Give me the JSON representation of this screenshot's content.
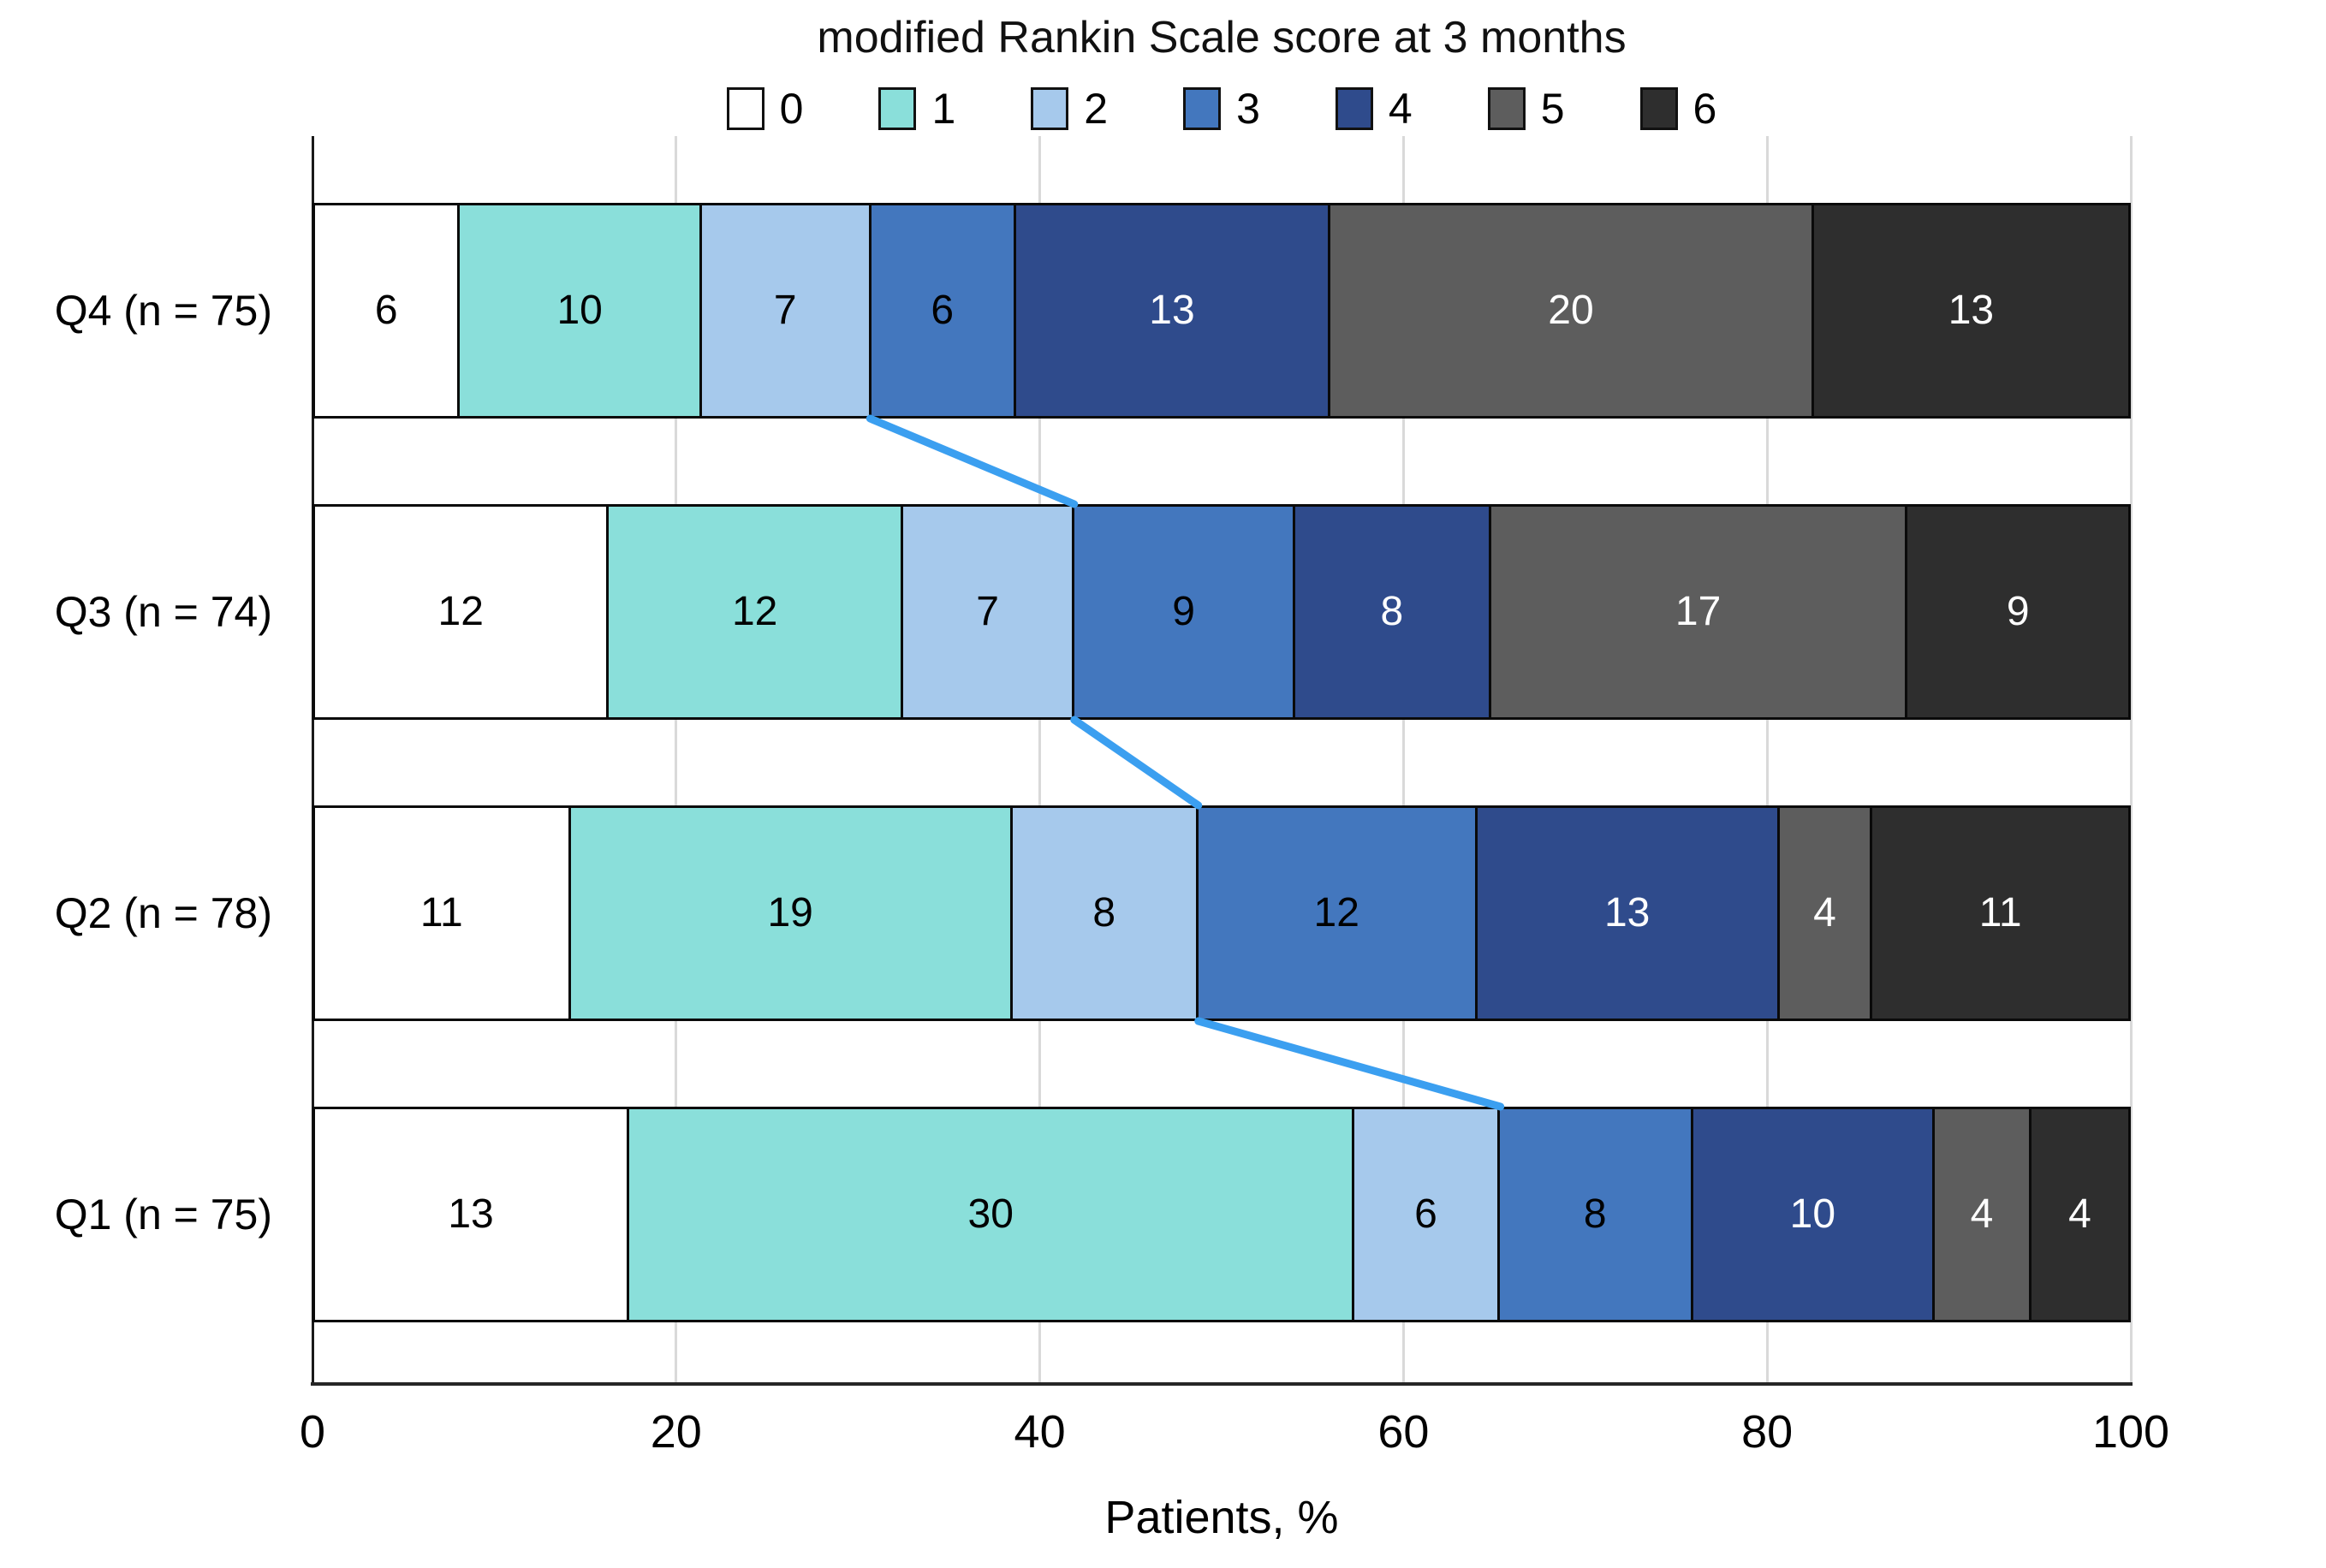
{
  "title": "modified Rankin Scale score at 3 months",
  "x_axis_title": "Patients, %",
  "chart_data": {
    "type": "bar",
    "orientation": "horizontal-stacked",
    "title": "modified Rankin Scale score at 3 months",
    "xlabel": "Patients, %",
    "xlim": [
      0,
      100
    ],
    "x_ticks": [
      "0",
      "20",
      "40",
      "60",
      "80",
      "100"
    ],
    "grid": "vertical-light-gray",
    "legend_position": "top",
    "categories": [
      "Q4 (n = 75)",
      "Q3 (n = 74)",
      "Q2 (n = 78)",
      "Q1 (n = 75)"
    ],
    "group_sizes": [
      75,
      74,
      78,
      75
    ],
    "values_are": "patient counts; segment width = count / n × 100%",
    "series": [
      {
        "name": "0",
        "color": "#ffffff",
        "label_color": "#000000",
        "values": [
          6,
          12,
          11,
          13
        ]
      },
      {
        "name": "1",
        "color": "#8adfda",
        "label_color": "#000000",
        "values": [
          10,
          12,
          19,
          30
        ]
      },
      {
        "name": "2",
        "color": "#a6c9ec",
        "label_color": "#000000",
        "values": [
          7,
          7,
          8,
          6
        ]
      },
      {
        "name": "3",
        "color": "#4377be",
        "label_color": "#000000",
        "values": [
          6,
          9,
          12,
          8
        ]
      },
      {
        "name": "4",
        "color": "#2f4b8c",
        "label_color": "#ffffff",
        "values": [
          13,
          8,
          13,
          10
        ]
      },
      {
        "name": "5",
        "color": "#5d5d5d",
        "label_color": "#ffffff",
        "values": [
          20,
          17,
          4,
          4
        ]
      },
      {
        "name": "6",
        "color": "#2e2e2e",
        "label_color": "#ffffff",
        "values": [
          13,
          9,
          11,
          4
        ]
      }
    ],
    "connectors": {
      "boundary_after_series": "2",
      "color": "#3b9ff0",
      "description": "blue lines linking the mRS 0–2 / 3–6 boundary between adjacent bars"
    }
  }
}
